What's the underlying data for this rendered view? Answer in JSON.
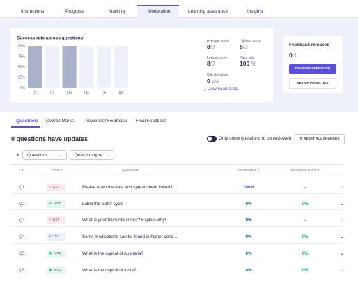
{
  "tabs": [
    "Instructions",
    "Progress",
    "Marking",
    "Moderation",
    "Learning assurance",
    "Insights"
  ],
  "chart_data": {
    "type": "bar",
    "title": "Success rate across questions",
    "categories": [
      "Q1",
      "Q2",
      "Q3",
      "Q4",
      "Q5",
      "Q6"
    ],
    "values": [
      100,
      0,
      100,
      0,
      0,
      0
    ],
    "color": "#a9b2c8",
    "ylim": [
      0,
      100
    ],
    "yticks": [
      {
        "value": 0,
        "label": "0%"
      },
      {
        "value": 25,
        "label": "25%"
      },
      {
        "value": 50,
        "label": "50%"
      },
      {
        "value": 75,
        "label": "75%"
      },
      {
        "value": 100,
        "label": "100%"
      }
    ]
  },
  "stats": {
    "average": {
      "label": "Average score",
      "value": "8",
      "total": "/3"
    },
    "highest": {
      "label": "Highest score",
      "value": "8",
      "total": "/3"
    },
    "lowest": {
      "label": "Lowest score",
      "value": "8",
      "total": "/3"
    },
    "pass": {
      "label": "Pass rate",
      "value": "100",
      "unit": "%"
    },
    "std": {
      "label": "Std. deviation",
      "value": "0",
      "unit": "pts"
    },
    "download": "Download data"
  },
  "feedback": {
    "title": "Feedback released",
    "value": "0",
    "total": "/1",
    "release": "RELEASE FEEDBACK",
    "penalties": "SET UP PENALTIES"
  },
  "subtabs": [
    "Questions",
    "Overall Marks",
    "Provisional Feedback",
    "Final Feedback"
  ],
  "heading": "0 questions have updates",
  "toggle": "Only show questions to be reviewed",
  "reset": "RESET ALL CHANGES",
  "filters": [
    "Questions",
    "Question type"
  ],
  "table": {
    "headers": [
      "#",
      "TYPE",
      "QUESTION",
      "RESPONSE",
      "SUCCESS RATE"
    ],
    "rows": [
      [
        "Q1.",
        "EXT",
        "Please open the data test spreadsheet linked b...",
        "100%",
        "–"
      ],
      [
        "Q2.",
        "HOT",
        "Label the water cycle",
        "0%",
        "0%"
      ],
      [
        "Q3.",
        "EXT",
        "What is your favourite colour? Explain why!",
        "0%",
        "–"
      ],
      [
        "Q4.",
        "T/F",
        "Some medications can be found in higher conc...",
        "0%",
        "0%"
      ],
      [
        "Q5.",
        "MCQ",
        "What is the capital of Australia?",
        "0%",
        "0%"
      ],
      [
        "Q6.",
        "MCQ",
        "What is the capital of India?",
        "0%",
        "0%"
      ]
    ]
  }
}
